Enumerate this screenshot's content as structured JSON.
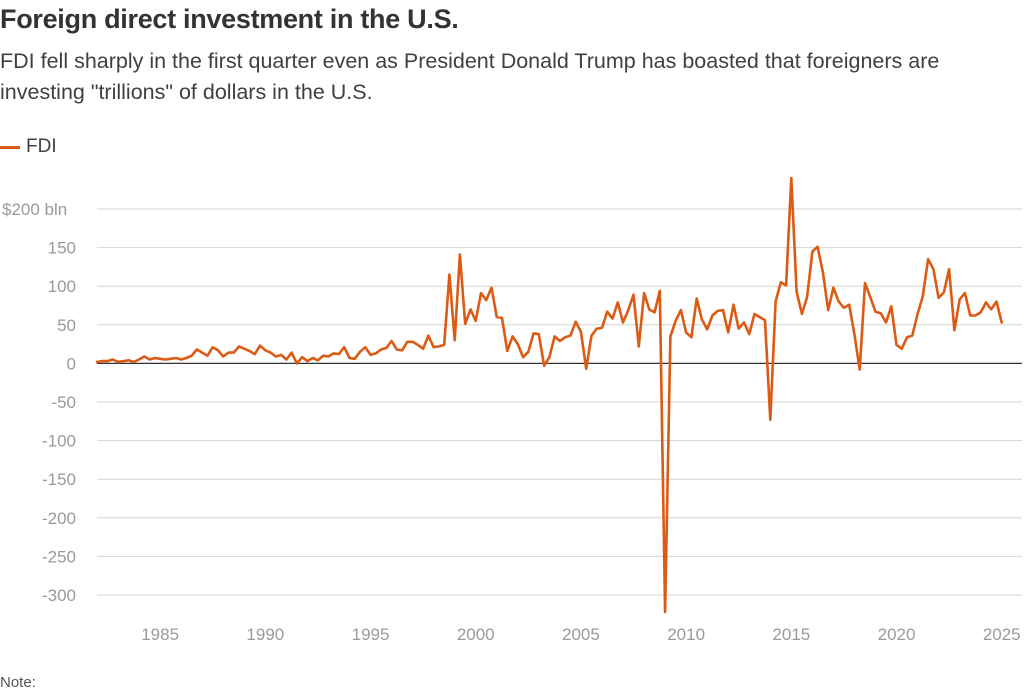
{
  "header": {
    "title": "Foreign direct investment in the U.S.",
    "subtitle": "FDI fell sharply in the first quarter even as President Donald Trump has boasted that foreigners are investing \"trillions\" of dollars in the U.S."
  },
  "note": "Note:",
  "colors": {
    "series": "#dc5b14",
    "grid": "#d4d4d4",
    "zero": "#333333"
  },
  "chart_data": {
    "type": "line",
    "title": "Foreign direct investment in the U.S.",
    "xlim": [
      1982,
      2025.25
    ],
    "ylim": [
      -320,
      240
    ],
    "y_ticks": [
      200,
      150,
      100,
      50,
      0,
      -50,
      -100,
      -150,
      -200,
      -250,
      -300
    ],
    "y_tick_labels": [
      "$200 bln",
      "150",
      "100",
      "50",
      "0",
      "-50",
      "-100",
      "-150",
      "-200",
      "-250",
      "-300"
    ],
    "x_ticks": [
      1985,
      1990,
      1995,
      2000,
      2005,
      2010,
      2015,
      2020,
      2025
    ],
    "x_tick_labels": [
      "1985",
      "1990",
      "1995",
      "2000",
      "2005",
      "2010",
      "2015",
      "2020",
      "2025"
    ],
    "grid": true,
    "legend_position": "top-left",
    "series": [
      {
        "name": "FDI",
        "x": [
          1982.0,
          1982.25,
          1982.5,
          1982.75,
          1983.0,
          1983.25,
          1983.5,
          1983.75,
          1984.0,
          1984.25,
          1984.5,
          1984.75,
          1985.0,
          1985.25,
          1985.5,
          1985.75,
          1986.0,
          1986.25,
          1986.5,
          1986.75,
          1987.0,
          1987.25,
          1987.5,
          1987.75,
          1988.0,
          1988.25,
          1988.5,
          1988.75,
          1989.0,
          1989.25,
          1989.5,
          1989.75,
          1990.0,
          1990.25,
          1990.5,
          1990.75,
          1991.0,
          1991.25,
          1991.5,
          1991.75,
          1992.0,
          1992.25,
          1992.5,
          1992.75,
          1993.0,
          1993.25,
          1993.5,
          1993.75,
          1994.0,
          1994.25,
          1994.5,
          1994.75,
          1995.0,
          1995.25,
          1995.5,
          1995.75,
          1996.0,
          1996.25,
          1996.5,
          1996.75,
          1997.0,
          1997.25,
          1997.5,
          1997.75,
          1998.0,
          1998.25,
          1998.5,
          1998.75,
          1999.0,
          1999.25,
          1999.5,
          1999.75,
          2000.0,
          2000.25,
          2000.5,
          2000.75,
          2001.0,
          2001.25,
          2001.5,
          2001.75,
          2002.0,
          2002.25,
          2002.5,
          2002.75,
          2003.0,
          2003.25,
          2003.5,
          2003.75,
          2004.0,
          2004.25,
          2004.5,
          2004.75,
          2005.0,
          2005.25,
          2005.5,
          2005.75,
          2006.0,
          2006.25,
          2006.5,
          2006.75,
          2007.0,
          2007.25,
          2007.5,
          2007.75,
          2008.0,
          2008.25,
          2008.5,
          2008.75,
          2009.0,
          2009.25,
          2009.5,
          2009.75,
          2010.0,
          2010.25,
          2010.5,
          2010.75,
          2011.0,
          2011.25,
          2011.5,
          2011.75,
          2012.0,
          2012.25,
          2012.5,
          2012.75,
          2013.0,
          2013.25,
          2013.5,
          2013.75,
          2014.0,
          2014.25,
          2014.5,
          2014.75,
          2015.0,
          2015.25,
          2015.5,
          2015.75,
          2016.0,
          2016.25,
          2016.5,
          2016.75,
          2017.0,
          2017.25,
          2017.5,
          2017.75,
          2018.0,
          2018.25,
          2018.5,
          2018.75,
          2019.0,
          2019.25,
          2019.5,
          2019.75,
          2020.0,
          2020.25,
          2020.5,
          2020.75,
          2021.0,
          2021.25,
          2021.5,
          2021.75,
          2022.0,
          2022.25,
          2022.5,
          2022.75,
          2023.0,
          2023.25,
          2023.5,
          2023.75,
          2024.0,
          2024.25,
          2024.5,
          2024.75,
          2025.0
        ],
        "values": [
          2,
          3,
          3,
          5,
          2,
          3,
          4,
          2,
          5,
          9,
          5,
          7,
          6,
          5,
          6,
          7,
          5,
          7,
          10,
          18,
          14,
          10,
          21,
          17,
          9,
          14,
          14,
          22,
          19,
          16,
          12,
          23,
          17,
          14,
          9,
          11,
          5,
          14,
          0,
          8,
          3,
          7,
          4,
          10,
          9,
          13,
          12,
          21,
          7,
          6,
          15,
          21,
          11,
          13,
          18,
          20,
          29,
          18,
          17,
          28,
          28,
          24,
          19,
          36,
          21,
          22,
          24,
          115,
          30,
          141,
          51,
          70,
          55,
          91,
          82,
          98,
          60,
          59,
          16,
          35,
          25,
          8,
          15,
          39,
          38,
          -3,
          8,
          35,
          29,
          34,
          36,
          54,
          41,
          -7,
          36,
          45,
          46,
          67,
          58,
          79,
          53,
          69,
          89,
          22,
          91,
          70,
          66,
          94,
          -322,
          35,
          55,
          69,
          40,
          34,
          84,
          57,
          44,
          62,
          68,
          69,
          40,
          76,
          45,
          53,
          38,
          64,
          60,
          56,
          -73,
          80,
          105,
          101,
          240,
          93,
          64,
          86,
          145,
          151,
          118,
          69,
          98,
          80,
          72,
          76,
          37,
          -8,
          104,
          86,
          67,
          65,
          53,
          74,
          24,
          19,
          34,
          36,
          64,
          87,
          135,
          122,
          85,
          92,
          122,
          43,
          83,
          91,
          62,
          62,
          66,
          79,
          70,
          80,
          53
        ]
      }
    ]
  }
}
